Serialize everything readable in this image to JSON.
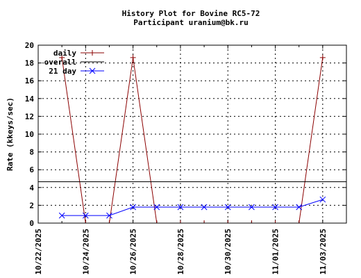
{
  "chart_data": {
    "type": "line",
    "title": "History Plot for Bovine RC5-72",
    "subtitle": "Participant uranium@bk.ru",
    "xlabel": "",
    "ylabel": "Rate (kkeys/sec)",
    "ylim": [
      0,
      20
    ],
    "yticks": [
      0,
      2,
      4,
      6,
      8,
      10,
      12,
      14,
      16,
      18,
      20
    ],
    "xlim": [
      "2025-10-22",
      "2025-11-04"
    ],
    "xticks": [
      "2025-10-22",
      "2025-10-24",
      "2025-10-26",
      "2025-10-28",
      "2025-10-30",
      "2025-11-01",
      "2025-11-03"
    ],
    "xtick_labels": [
      "10/22/2025",
      "10/24/2025",
      "10/26/2025",
      "10/28/2025",
      "10/30/2025",
      "11/01/2025",
      "11/03/2025"
    ],
    "grid": true,
    "legend_position": "top-left",
    "series": [
      {
        "name": "daily",
        "color": "#8b0000",
        "marker": "plus",
        "points": [
          [
            "2025-10-23",
            18.6
          ],
          [
            "2025-10-24",
            0
          ],
          [
            "2025-10-25",
            0
          ],
          [
            "2025-10-26",
            18.6
          ],
          [
            "2025-10-27",
            0
          ],
          [
            "2025-10-28",
            0
          ],
          [
            "2025-10-29",
            0
          ],
          [
            "2025-10-30",
            0
          ],
          [
            "2025-10-31",
            0
          ],
          [
            "2025-11-01",
            0
          ],
          [
            "2025-11-02",
            0
          ],
          [
            "2025-11-03",
            18.6
          ]
        ]
      },
      {
        "name": "overall",
        "color": "#000000",
        "marker": "none",
        "constant": 4.65
      },
      {
        "name": "21 day",
        "color": "#0000ff",
        "marker": "x",
        "points": [
          [
            "2025-10-23",
            0.85
          ],
          [
            "2025-10-24",
            0.85
          ],
          [
            "2025-10-25",
            0.85
          ],
          [
            "2025-10-26",
            1.8
          ],
          [
            "2025-10-27",
            1.8
          ],
          [
            "2025-10-28",
            1.8
          ],
          [
            "2025-10-29",
            1.8
          ],
          [
            "2025-10-30",
            1.8
          ],
          [
            "2025-10-31",
            1.8
          ],
          [
            "2025-11-01",
            1.8
          ],
          [
            "2025-11-02",
            1.8
          ],
          [
            "2025-11-03",
            2.65
          ]
        ]
      }
    ]
  }
}
